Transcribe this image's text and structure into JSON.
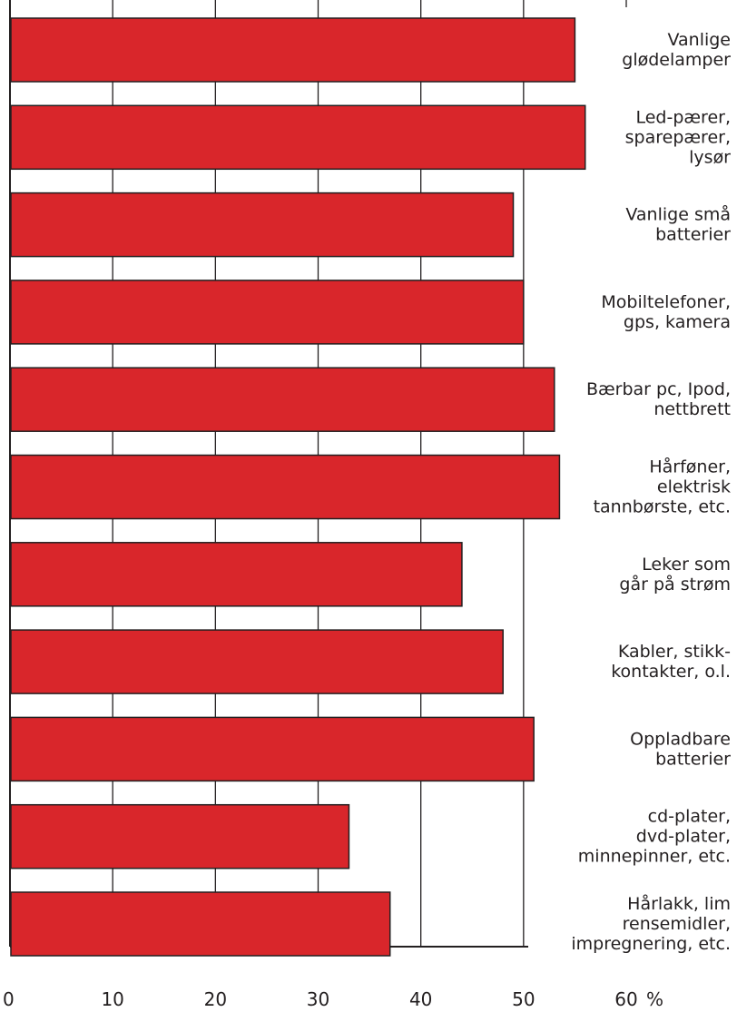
{
  "chart_data": {
    "type": "bar",
    "orientation": "horizontal",
    "categories": [
      [
        "Vanlige",
        "glødelamper"
      ],
      [
        "Led-pærer,",
        "sparepærer,",
        "lysør"
      ],
      [
        "Vanlige små",
        "batterier"
      ],
      [
        "Mobiltelefoner,",
        "gps, kamera"
      ],
      [
        "Bærbar pc, Ipod,",
        "nettbrett"
      ],
      [
        "Hårføner,",
        "elektrisk",
        "tannbørste, etc."
      ],
      [
        "Leker som",
        "går på strøm"
      ],
      [
        "Kabler, stikk-",
        "kontakter, o.l."
      ],
      [
        "Oppladbare",
        "batterier"
      ],
      [
        "cd-plater,",
        "dvd-plater,",
        "minnepinner, etc."
      ],
      [
        "Hårlakk, lim",
        "rensemidler,",
        "impregnering, etc."
      ]
    ],
    "values": [
      55,
      56,
      49,
      50,
      53,
      53.5,
      44,
      48,
      51,
      33,
      37
    ],
    "xlim": [
      0,
      60
    ],
    "xticks": [
      "0",
      "10",
      "20",
      "30",
      "40",
      "50",
      "60"
    ],
    "unit": "%",
    "grid": true,
    "bar_color": "#d9262b"
  }
}
